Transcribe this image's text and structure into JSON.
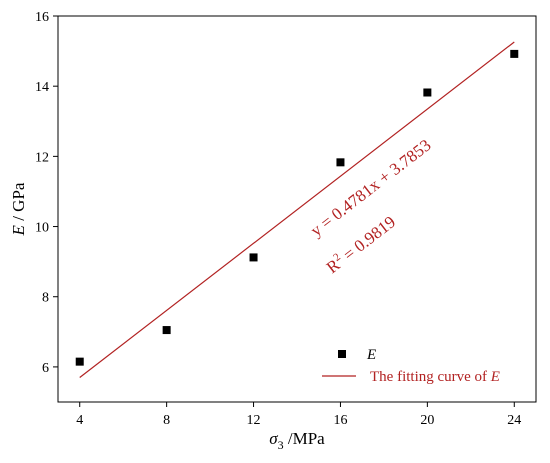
{
  "chart_data": {
    "type": "scatter",
    "title": "",
    "xlabel_symbol": "σ",
    "xlabel_subscript": "3",
    "xlabel_unit": " /MPa",
    "ylabel_symbol": "E",
    "ylabel_unit": " / GPa",
    "xlim": [
      3,
      25
    ],
    "ylim": [
      5,
      16
    ],
    "x_ticks": [
      "4",
      "8",
      "12",
      "16",
      "20",
      "24"
    ],
    "y_ticks": [
      "6",
      "8",
      "10",
      "12",
      "14",
      "16"
    ],
    "grid": false,
    "legend_position": "bottom-right",
    "series": [
      {
        "name": "E",
        "kind": "scatter",
        "color": "#000000",
        "x": [
          4,
          8,
          12,
          16,
          20,
          24
        ],
        "y": [
          6.15,
          7.05,
          9.12,
          11.83,
          13.82,
          14.92
        ]
      },
      {
        "name": "The fitting curve of E",
        "kind": "line",
        "color": "#b22222",
        "slope": 0.4781,
        "intercept": 3.7853,
        "x_range": [
          4,
          24
        ]
      }
    ],
    "annotation": {
      "equation": "y = 0.4781x + 3.7853",
      "r2_prefix": "R",
      "r2_power": "2",
      "r2_value": " = 0.9819",
      "color": "#b22222"
    },
    "legend": {
      "scatter_label_prefix": "",
      "scatter_label_italic": "E",
      "line_label_prefix": "The fitting curve of ",
      "line_label_italic": "E"
    }
  }
}
